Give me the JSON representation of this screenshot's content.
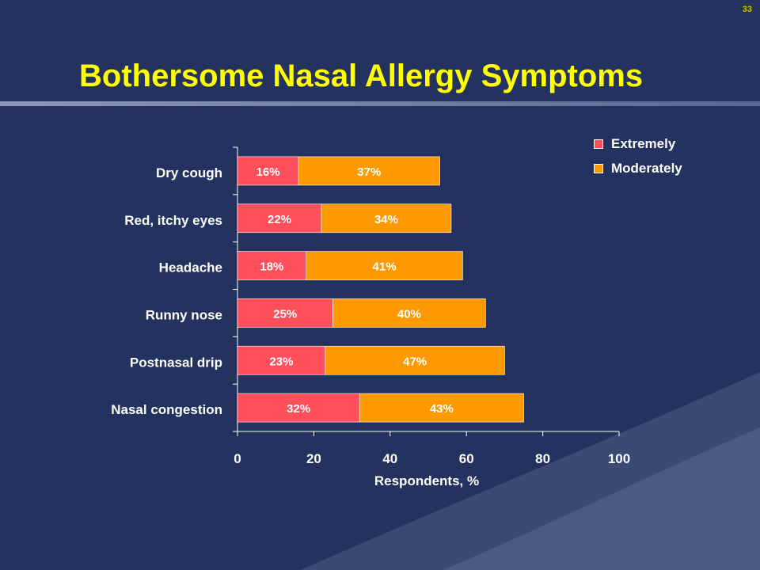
{
  "slide": {
    "number": "33",
    "title": "Bothersome Nasal Allergy Symptoms"
  },
  "colors": {
    "background": "#23325e",
    "title": "#ffff00",
    "extremely": "#ff4f5a",
    "moderately": "#ff9900",
    "text": "#ffffff"
  },
  "chart_data": {
    "type": "bar",
    "orientation": "horizontal",
    "stacked": true,
    "categories": [
      "Dry cough",
      "Red, itchy eyes",
      "Headache",
      "Runny nose",
      "Postnasal drip",
      "Nasal congestion"
    ],
    "series": [
      {
        "name": "Extremely",
        "values": [
          16,
          22,
          18,
          25,
          23,
          32
        ],
        "labels": [
          "16%",
          "22%",
          "18%",
          "25%",
          "23%",
          "32%"
        ]
      },
      {
        "name": "Moderately",
        "values": [
          37,
          34,
          41,
          40,
          47,
          43
        ],
        "labels": [
          "37%",
          "34%",
          "41%",
          "40%",
          "47%",
          "43%"
        ]
      }
    ],
    "xlabel": "Respondents, %",
    "xlim": [
      0,
      100
    ],
    "xticks": [
      0,
      20,
      40,
      60,
      80,
      100
    ],
    "grid": false,
    "legend": "top-right"
  }
}
